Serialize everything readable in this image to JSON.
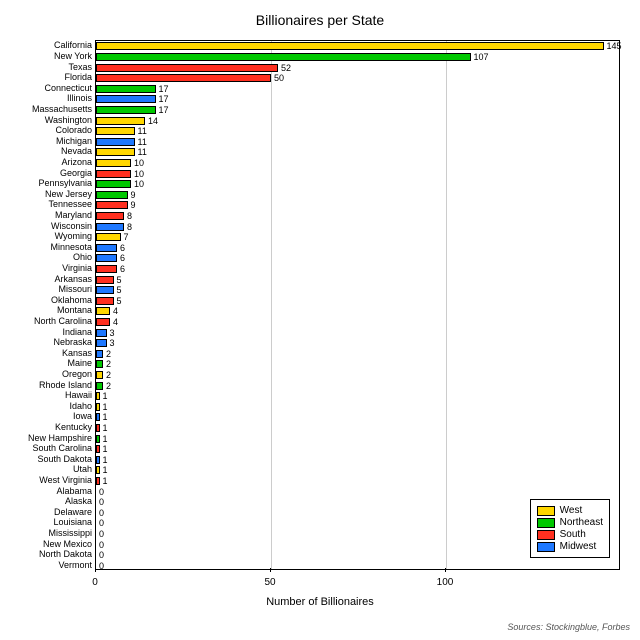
{
  "chart": {
    "type": "bar-horizontal",
    "title": "Billionaires per State",
    "title_fontsize": 14,
    "xlabel": "Number of Billionaires",
    "xlabel_fontsize": 11,
    "xlim": [
      0,
      150
    ],
    "xticks": [
      0,
      50,
      100
    ],
    "background_color": "#ffffff",
    "grid_color": "#cccccc",
    "bar_border_color": "#000000",
    "label_fontsize": 9,
    "value_fontsize": 9,
    "regions": {
      "West": "#ffd700",
      "Northeast": "#00c800",
      "South": "#ff3020",
      "Midwest": "#1e78ff"
    },
    "legend": {
      "position": "bottom-right",
      "items": [
        "West",
        "Northeast",
        "South",
        "Midwest"
      ]
    },
    "sources": "Sources: Stockingblue, Forbes",
    "data": [
      {
        "state": "California",
        "value": 145,
        "region": "West"
      },
      {
        "state": "New York",
        "value": 107,
        "region": "Northeast"
      },
      {
        "state": "Texas",
        "value": 52,
        "region": "South"
      },
      {
        "state": "Florida",
        "value": 50,
        "region": "South"
      },
      {
        "state": "Connecticut",
        "value": 17,
        "region": "Northeast"
      },
      {
        "state": "Illinois",
        "value": 17,
        "region": "Midwest"
      },
      {
        "state": "Massachusetts",
        "value": 17,
        "region": "Northeast"
      },
      {
        "state": "Washington",
        "value": 14,
        "region": "West"
      },
      {
        "state": "Colorado",
        "value": 11,
        "region": "West"
      },
      {
        "state": "Michigan",
        "value": 11,
        "region": "Midwest"
      },
      {
        "state": "Nevada",
        "value": 11,
        "region": "West"
      },
      {
        "state": "Arizona",
        "value": 10,
        "region": "West"
      },
      {
        "state": "Georgia",
        "value": 10,
        "region": "South"
      },
      {
        "state": "Pennsylvania",
        "value": 10,
        "region": "Northeast"
      },
      {
        "state": "New Jersey",
        "value": 9,
        "region": "Northeast"
      },
      {
        "state": "Tennessee",
        "value": 9,
        "region": "South"
      },
      {
        "state": "Maryland",
        "value": 8,
        "region": "South"
      },
      {
        "state": "Wisconsin",
        "value": 8,
        "region": "Midwest"
      },
      {
        "state": "Wyoming",
        "value": 7,
        "region": "West"
      },
      {
        "state": "Minnesota",
        "value": 6,
        "region": "Midwest"
      },
      {
        "state": "Ohio",
        "value": 6,
        "region": "Midwest"
      },
      {
        "state": "Virginia",
        "value": 6,
        "region": "South"
      },
      {
        "state": "Arkansas",
        "value": 5,
        "region": "South"
      },
      {
        "state": "Missouri",
        "value": 5,
        "region": "Midwest"
      },
      {
        "state": "Oklahoma",
        "value": 5,
        "region": "South"
      },
      {
        "state": "Montana",
        "value": 4,
        "region": "West"
      },
      {
        "state": "North Carolina",
        "value": 4,
        "region": "South"
      },
      {
        "state": "Indiana",
        "value": 3,
        "region": "Midwest"
      },
      {
        "state": "Nebraska",
        "value": 3,
        "region": "Midwest"
      },
      {
        "state": "Kansas",
        "value": 2,
        "region": "Midwest"
      },
      {
        "state": "Maine",
        "value": 2,
        "region": "Northeast"
      },
      {
        "state": "Oregon",
        "value": 2,
        "region": "West"
      },
      {
        "state": "Rhode Island",
        "value": 2,
        "region": "Northeast"
      },
      {
        "state": "Hawaii",
        "value": 1,
        "region": "West"
      },
      {
        "state": "Idaho",
        "value": 1,
        "region": "West"
      },
      {
        "state": "Iowa",
        "value": 1,
        "region": "Midwest"
      },
      {
        "state": "Kentucky",
        "value": 1,
        "region": "South"
      },
      {
        "state": "New Hampshire",
        "value": 1,
        "region": "Northeast"
      },
      {
        "state": "South Carolina",
        "value": 1,
        "region": "South"
      },
      {
        "state": "South Dakota",
        "value": 1,
        "region": "Midwest"
      },
      {
        "state": "Utah",
        "value": 1,
        "region": "West"
      },
      {
        "state": "West Virginia",
        "value": 1,
        "region": "South"
      },
      {
        "state": "Alabama",
        "value": 0,
        "region": "South"
      },
      {
        "state": "Alaska",
        "value": 0,
        "region": "West"
      },
      {
        "state": "Delaware",
        "value": 0,
        "region": "South"
      },
      {
        "state": "Louisiana",
        "value": 0,
        "region": "South"
      },
      {
        "state": "Mississippi",
        "value": 0,
        "region": "South"
      },
      {
        "state": "New Mexico",
        "value": 0,
        "region": "West"
      },
      {
        "state": "North Dakota",
        "value": 0,
        "region": "Midwest"
      },
      {
        "state": "Vermont",
        "value": 0,
        "region": "Northeast"
      }
    ]
  }
}
